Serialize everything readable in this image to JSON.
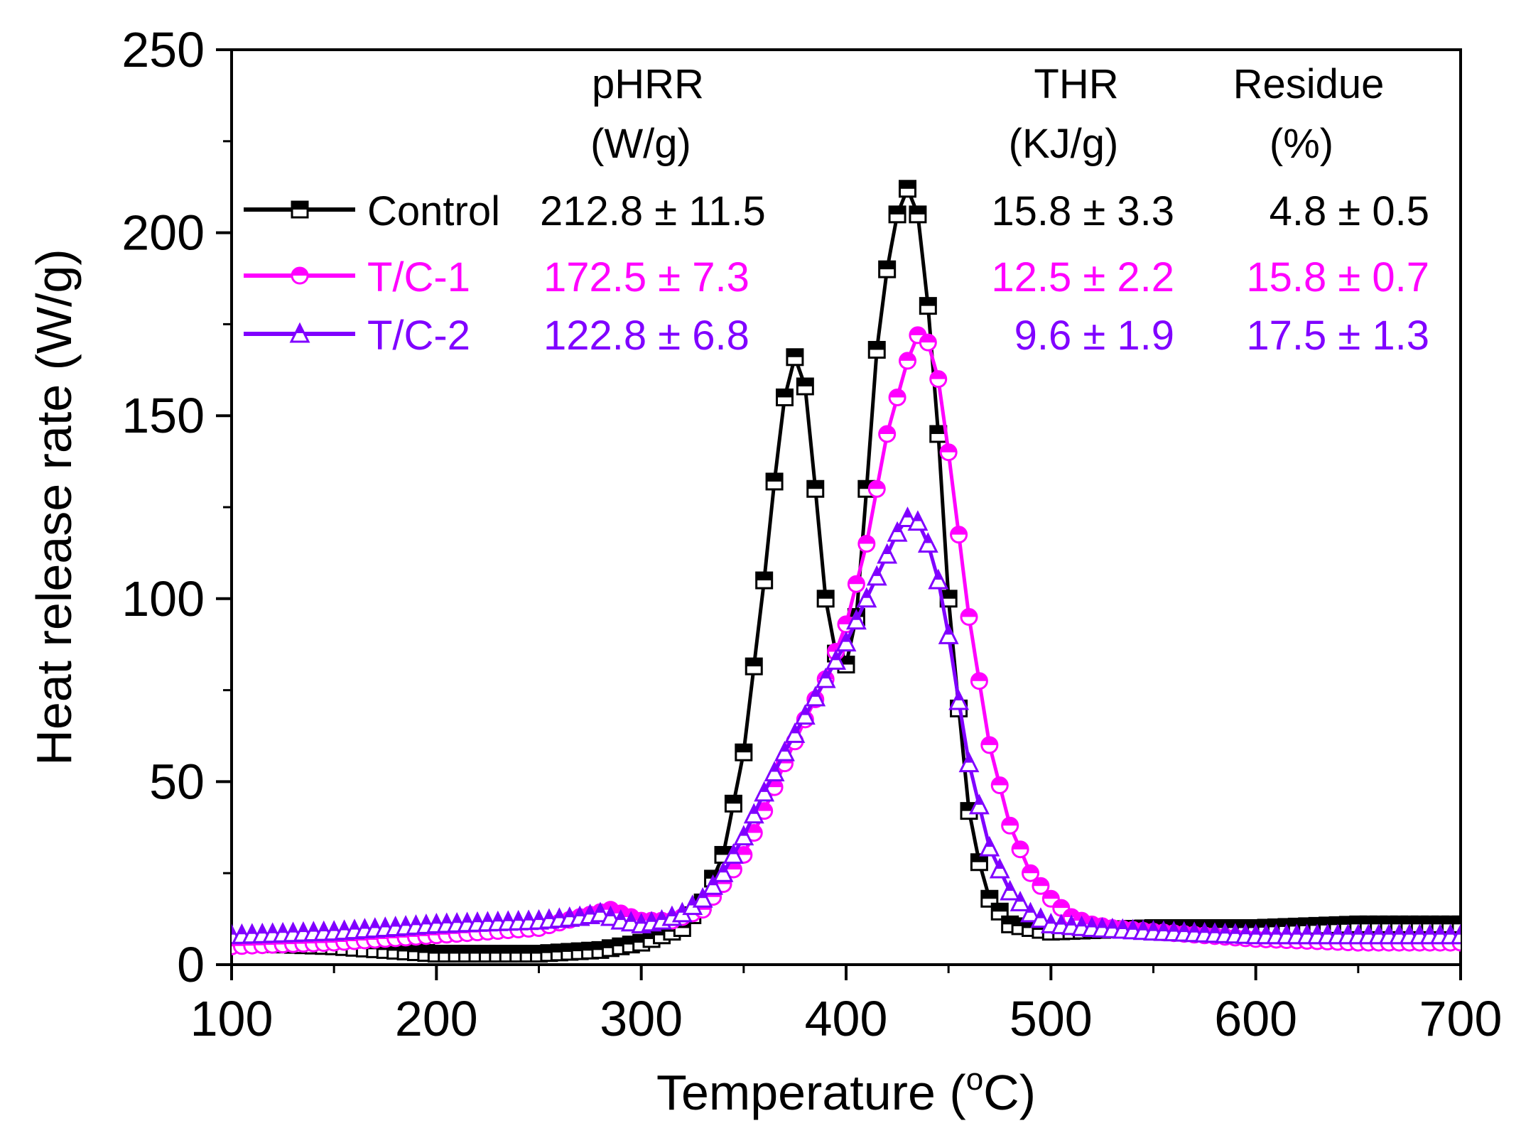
{
  "chart_data": {
    "type": "line",
    "xlabel": "Temperature (",
    "xlabel_sup": "o",
    "xlabel_end": "C)",
    "ylabel": "Heat release rate (W/g)",
    "xlim": [
      100,
      700
    ],
    "ylim": [
      0,
      250
    ],
    "xticks": [
      100,
      200,
      300,
      400,
      500,
      600,
      700
    ],
    "yticks": [
      0,
      50,
      100,
      150,
      200,
      250
    ],
    "xtick_labels": [
      "100",
      "200",
      "300",
      "400",
      "500",
      "600",
      "700"
    ],
    "ytick_labels": [
      "0",
      "50",
      "100",
      "150",
      "200",
      "250"
    ],
    "legend_headers": {
      "phrr": "pHRR",
      "phrr_unit": "(W/g)",
      "thr": "THR",
      "thr_unit": "(KJ/g)",
      "residue": "Residue",
      "residue_unit": "(%)"
    },
    "series": [
      {
        "name": "Control",
        "color": "#000000",
        "marker": "square",
        "phrr": "212.8 ± 11.5",
        "thr": "15.8 ± 3.3",
        "residue": "4.8 ± 0.5",
        "x": [
          100,
          150,
          200,
          250,
          280,
          300,
          320,
          330,
          340,
          350,
          360,
          365,
          370,
          375,
          380,
          385,
          390,
          395,
          400,
          405,
          410,
          415,
          420,
          425,
          430,
          435,
          440,
          445,
          450,
          455,
          460,
          465,
          470,
          480,
          500,
          550,
          600,
          650,
          700
        ],
        "y": [
          6,
          5,
          3,
          3,
          4,
          6,
          10,
          17,
          30,
          58,
          105,
          132,
          155,
          166,
          158,
          130,
          100,
          85,
          82,
          95,
          130,
          168,
          190,
          205,
          212,
          205,
          180,
          145,
          100,
          70,
          42,
          28,
          18,
          11,
          9,
          10,
          10,
          11,
          11
        ]
      },
      {
        "name": "T/C-1",
        "color": "#ff00ff",
        "marker": "circle",
        "phrr": "172.5 ± 7.3",
        "thr": "12.5 ± 2.2",
        "residue": "15.8 ± 0.7",
        "x": [
          100,
          150,
          200,
          250,
          270,
          285,
          300,
          315,
          330,
          340,
          350,
          360,
          370,
          380,
          390,
          400,
          410,
          420,
          430,
          435,
          440,
          445,
          450,
          460,
          470,
          480,
          490,
          500,
          510,
          520,
          530,
          550,
          600,
          650,
          700
        ],
        "y": [
          5,
          6,
          8,
          10,
          13,
          15,
          12,
          12,
          15,
          22,
          30,
          42,
          55,
          67,
          78,
          93,
          115,
          145,
          165,
          172,
          170,
          160,
          140,
          95,
          60,
          38,
          25,
          18,
          13,
          11,
          10,
          9,
          7,
          6,
          6
        ]
      },
      {
        "name": "T/C-2",
        "color": "#8000ff",
        "marker": "triangle",
        "phrr": "122.8 ± 6.8",
        "thr": "9.6 ± 1.9",
        "residue": "17.5 ± 1.3",
        "x": [
          100,
          150,
          200,
          250,
          270,
          280,
          290,
          300,
          310,
          320,
          330,
          340,
          350,
          360,
          370,
          380,
          390,
          400,
          410,
          420,
          425,
          430,
          435,
          440,
          445,
          450,
          455,
          460,
          470,
          480,
          490,
          500,
          520,
          550,
          600,
          650,
          700
        ],
        "y": [
          8,
          9,
          11,
          12,
          13,
          14,
          12,
          11,
          12,
          14,
          18,
          25,
          35,
          47,
          58,
          68,
          78,
          88,
          100,
          112,
          118,
          122,
          121,
          115,
          105,
          90,
          72,
          55,
          32,
          20,
          14,
          11,
          10,
          9,
          8,
          8,
          8
        ]
      }
    ]
  }
}
